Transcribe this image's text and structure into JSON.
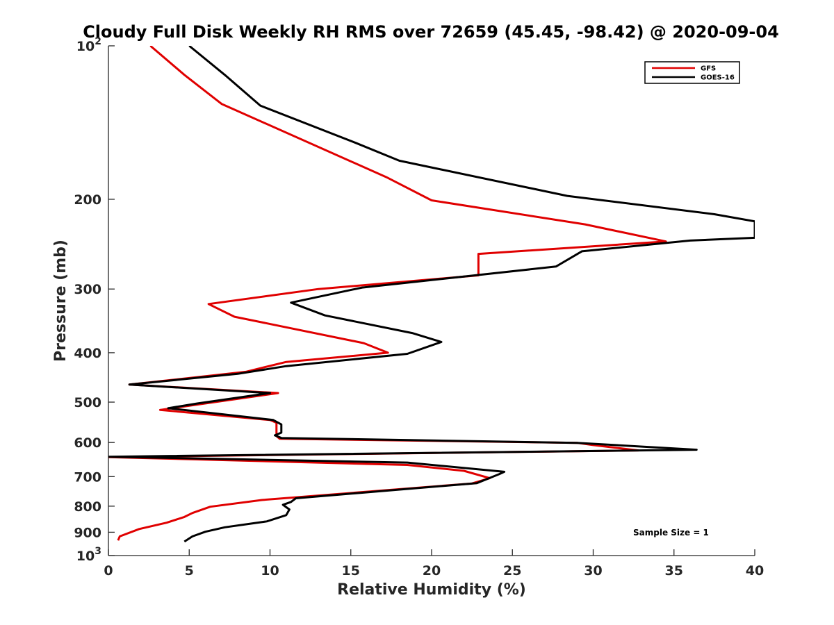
{
  "chart_data": {
    "type": "line",
    "title": "Cloudy Full Disk Weekly RH RMS over 72659 (45.45, -98.42) @ 2020-09-04",
    "xlabel": "Relative Humidity (%)",
    "ylabel": "Pressure (mb)",
    "xlim": [
      0,
      40
    ],
    "ylim": [
      100,
      1000
    ],
    "y_scale": "log",
    "y_reversed": true,
    "x_ticks": [
      "0",
      "5",
      "10",
      "15",
      "20",
      "25",
      "30",
      "35",
      "40"
    ],
    "y_ticks": [
      {
        "value": 100,
        "label": "10",
        "sup": "2"
      },
      {
        "value": 200,
        "label": "200",
        "sup": ""
      },
      {
        "value": 300,
        "label": "300",
        "sup": ""
      },
      {
        "value": 400,
        "label": "400",
        "sup": ""
      },
      {
        "value": 500,
        "label": "500",
        "sup": ""
      },
      {
        "value": 600,
        "label": "600",
        "sup": ""
      },
      {
        "value": 700,
        "label": "700",
        "sup": ""
      },
      {
        "value": 800,
        "label": "800",
        "sup": ""
      },
      {
        "value": 900,
        "label": "900",
        "sup": ""
      },
      {
        "value": 1000,
        "label": "10",
        "sup": "3"
      }
    ],
    "grid": false,
    "legend_position": "top-right",
    "annotation": "Sample Size = 1",
    "series": [
      {
        "name": "GFS",
        "color": "#e00000",
        "points": [
          [
            2.6,
            100
          ],
          [
            4.7,
            114
          ],
          [
            7.0,
            130
          ],
          [
            17.2,
            181
          ],
          [
            20.0,
            201
          ],
          [
            29.5,
            224
          ],
          [
            34.5,
            242
          ],
          [
            22.9,
            256
          ],
          [
            22.9,
            282
          ],
          [
            13.0,
            300
          ],
          [
            6.2,
            321
          ],
          [
            7.8,
            340
          ],
          [
            15.8,
            383
          ],
          [
            17.3,
            400
          ],
          [
            11.0,
            417
          ],
          [
            8.5,
            436
          ],
          [
            1.3,
            462
          ],
          [
            10.5,
            480
          ],
          [
            3.2,
            518
          ],
          [
            10.0,
            542
          ],
          [
            10.4,
            549
          ],
          [
            10.4,
            583
          ],
          [
            10.6,
            590
          ],
          [
            29.0,
            601
          ],
          [
            30.0,
            607
          ],
          [
            32.8,
            622
          ],
          [
            0.0,
            641
          ],
          [
            18.5,
            664
          ],
          [
            22.0,
            682
          ],
          [
            23.6,
            705
          ],
          [
            22.5,
            722
          ],
          [
            9.5,
            778
          ],
          [
            6.3,
            802
          ],
          [
            5.2,
            825
          ],
          [
            4.7,
            840
          ],
          [
            3.6,
            862
          ],
          [
            1.9,
            887
          ],
          [
            0.7,
            917
          ],
          [
            0.6,
            934
          ]
        ]
      },
      {
        "name": "GOES-16",
        "color": "#000000",
        "points": [
          [
            5.0,
            100
          ],
          [
            7.2,
            114
          ],
          [
            9.4,
            131
          ],
          [
            15.3,
            155
          ],
          [
            18.0,
            168
          ],
          [
            28.4,
            197
          ],
          [
            37.5,
            214
          ],
          [
            40.0,
            221
          ],
          [
            40.0,
            238
          ],
          [
            36.0,
            241
          ],
          [
            29.3,
            253
          ],
          [
            27.7,
            271
          ],
          [
            15.7,
            298
          ],
          [
            11.3,
            319
          ],
          [
            13.4,
            338
          ],
          [
            18.8,
            366
          ],
          [
            20.6,
            381
          ],
          [
            18.5,
            402
          ],
          [
            11.0,
            425
          ],
          [
            8.0,
            440
          ],
          [
            1.3,
            462
          ],
          [
            10.0,
            480
          ],
          [
            5.5,
            503
          ],
          [
            3.7,
            514
          ],
          [
            10.2,
            542
          ],
          [
            10.7,
            553
          ],
          [
            10.7,
            574
          ],
          [
            10.3,
            581
          ],
          [
            10.7,
            588
          ],
          [
            29.0,
            601
          ],
          [
            36.4,
            620
          ],
          [
            0.0,
            640
          ],
          [
            18.5,
            657
          ],
          [
            24.5,
            685
          ],
          [
            24.2,
            692
          ],
          [
            22.8,
            721
          ],
          [
            11.6,
            772
          ],
          [
            11.3,
            785
          ],
          [
            10.8,
            795
          ],
          [
            11.2,
            812
          ],
          [
            11.0,
            833
          ],
          [
            9.8,
            857
          ],
          [
            7.2,
            880
          ],
          [
            6.0,
            898
          ],
          [
            5.2,
            917
          ],
          [
            4.7,
            939
          ]
        ]
      }
    ]
  }
}
